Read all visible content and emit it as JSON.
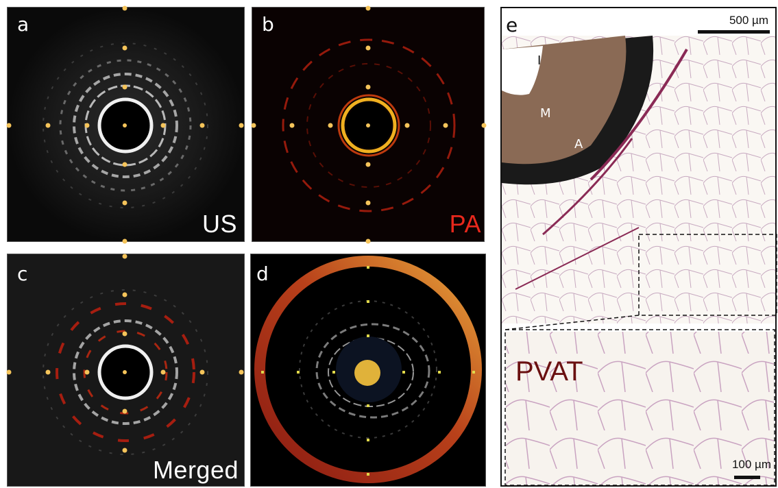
{
  "panels": {
    "a": {
      "letter": "a",
      "modality": "US",
      "modality_color": "#ffffff"
    },
    "b": {
      "letter": "b",
      "modality": "PA",
      "modality_color": "#e8281c"
    },
    "c": {
      "letter": "c",
      "modality": "Merged",
      "modality_color": "#ffffff"
    },
    "d": {
      "letter": "d"
    },
    "e": {
      "letter": "e",
      "scale_top": "500 µm",
      "scale_bottom": "100 µm",
      "layers": {
        "intima": "I",
        "media": "M",
        "adventitia": "A"
      },
      "inset_label": "PVAT",
      "inset_label_color": "#6a1010"
    }
  },
  "colors": {
    "marker_dot": "#f5c45a",
    "ring_dark": "#a3251a",
    "ring_light": "#e8a53a",
    "center_disk": "#e0b23a"
  }
}
